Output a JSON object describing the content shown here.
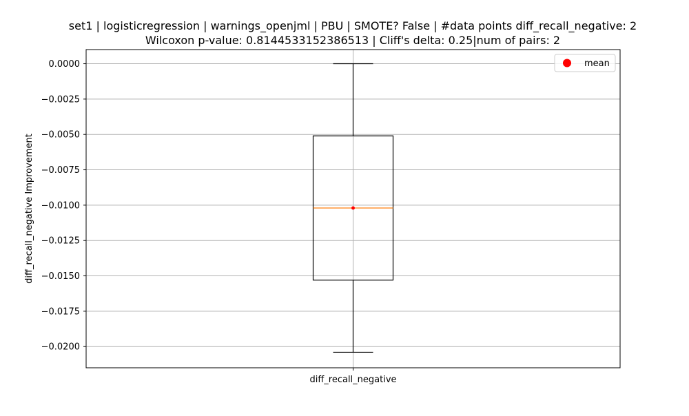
{
  "chart_data": {
    "type": "box",
    "title_line1": "set1 | logisticregression | warnings_openjml | PBU | SMOTE? False | #data points diff_recall_negative: 2",
    "title_line2": "Wilcoxon p-value: 0.8144533152386513 | Cliff's delta: 0.25|num of pairs: 2",
    "xlabel": "",
    "ylabel": "diff_recall_negative Improvement",
    "categories": [
      "diff_recall_negative"
    ],
    "ylim": [
      -0.0215,
      0.001
    ],
    "yticks": [
      0.0,
      -0.0025,
      -0.005,
      -0.0075,
      -0.01,
      -0.0125,
      -0.015,
      -0.0175,
      -0.02
    ],
    "ytick_labels": [
      "0.0000",
      "−0.0025",
      "−0.0050",
      "−0.0075",
      "−0.0100",
      "−0.0125",
      "−0.0150",
      "−0.0175",
      "−0.0200"
    ],
    "box": {
      "whisker_high": 0.0,
      "q3": -0.0051,
      "median": -0.0102,
      "q1": -0.0153,
      "whisker_low": -0.0204,
      "mean": -0.0102
    },
    "legend": {
      "label": "mean",
      "location": "upper right"
    },
    "grid": true,
    "colors": {
      "box": "#000000",
      "median": "#ff7f0e",
      "mean": "#ff0000",
      "grid": "#b0b0b0"
    }
  }
}
